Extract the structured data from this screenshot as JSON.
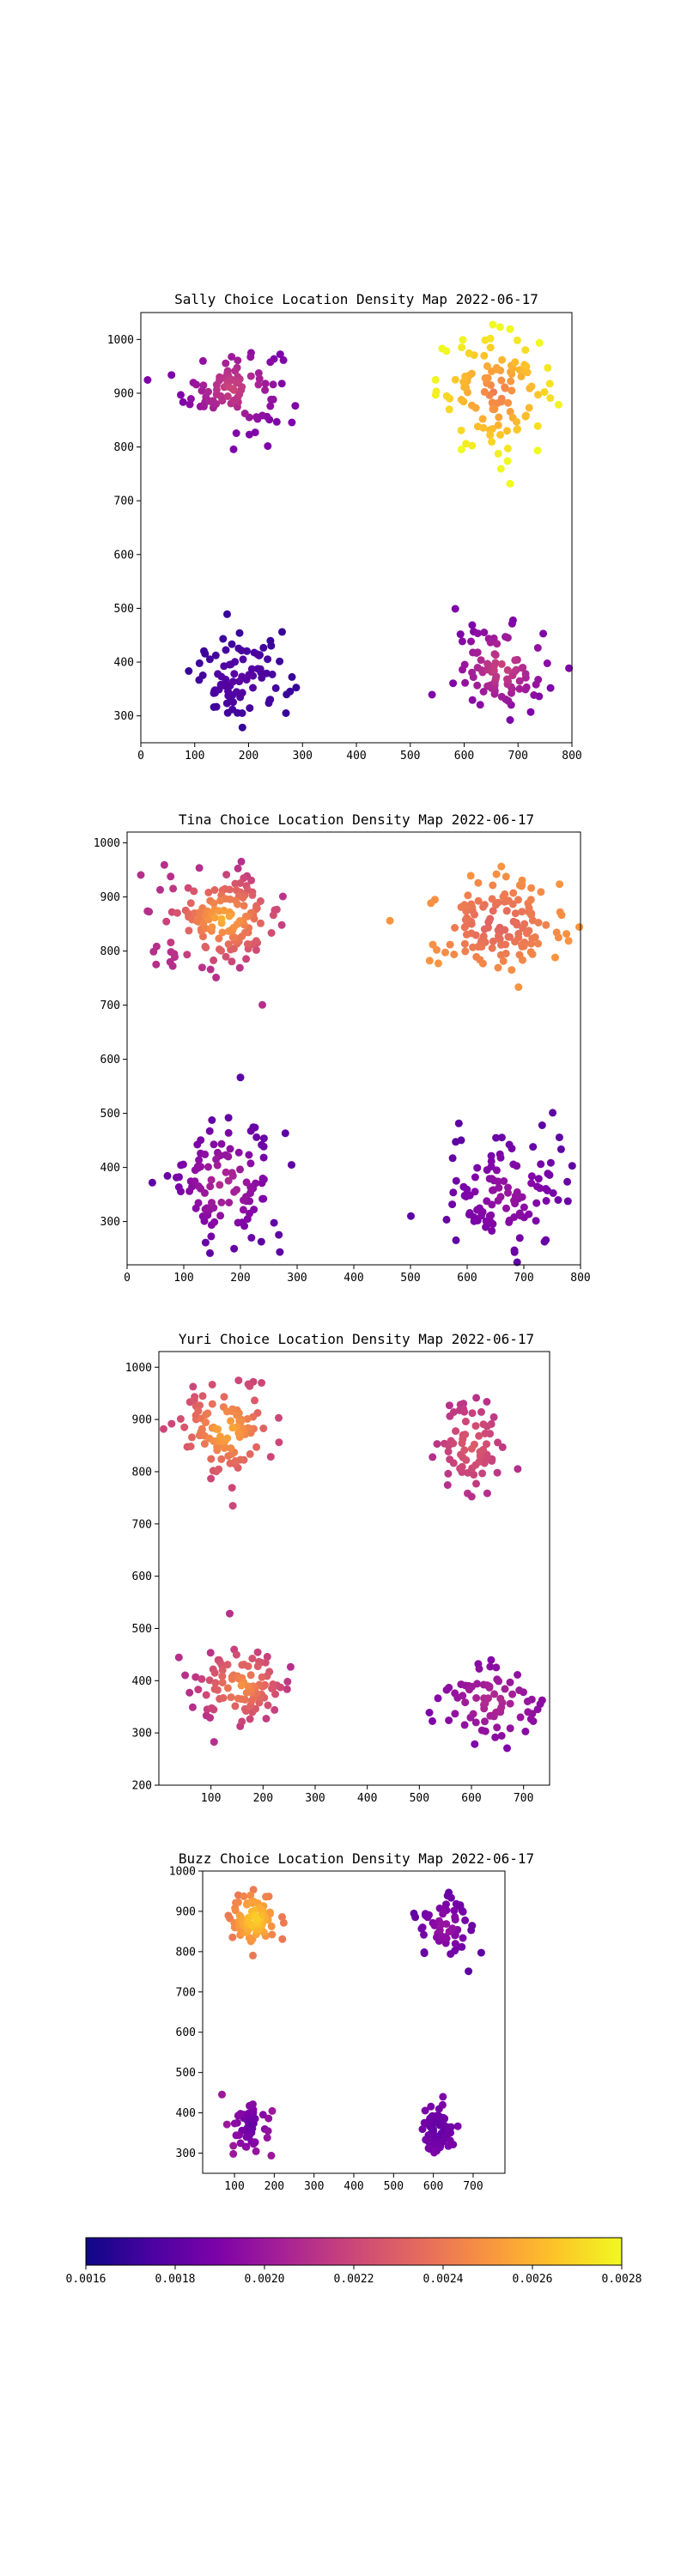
{
  "figure": {
    "colormap": "plasma",
    "colorbar": {
      "ticks": [
        "0.0016",
        "0.0018",
        "0.0020",
        "0.0022",
        "0.0024",
        "0.0026",
        "0.0028"
      ],
      "min": 0.0016,
      "max": 0.0028
    }
  },
  "chart_data": [
    {
      "type": "scatter",
      "title": "Sally Choice Location Density Map 2022-06-17",
      "xlim": [
        0,
        800
      ],
      "ylim": [
        250,
        1050
      ],
      "xticks": [
        "0",
        "100",
        "200",
        "300",
        "400",
        "500",
        "600",
        "700",
        "800"
      ],
      "yticks": [
        "300",
        "400",
        "500",
        "600",
        "700",
        "800",
        "900",
        "1000"
      ],
      "grid": false,
      "clusters": [
        {
          "cx": 170,
          "cy": 910,
          "sx": 45,
          "sy": 40,
          "n": 95,
          "zcenter": 0.0022,
          "zedge": 0.0019
        },
        {
          "cx": 660,
          "cy": 900,
          "sx": 55,
          "sy": 55,
          "n": 110,
          "zcenter": 0.0024,
          "zedge": 0.0028
        },
        {
          "cx": 185,
          "cy": 370,
          "sx": 45,
          "sy": 40,
          "n": 85,
          "zcenter": 0.0018,
          "zedge": 0.0017
        },
        {
          "cx": 670,
          "cy": 390,
          "sx": 45,
          "sy": 40,
          "n": 90,
          "zcenter": 0.0022,
          "zedge": 0.0019
        }
      ]
    },
    {
      "type": "scatter",
      "title": "Tina Choice Location Density Map 2022-06-17",
      "xlim": [
        0,
        800
      ],
      "ylim": [
        220,
        1020
      ],
      "xticks": [
        "0",
        "100",
        "200",
        "300",
        "400",
        "500",
        "600",
        "700",
        "800"
      ],
      "yticks": [
        "300",
        "400",
        "500",
        "600",
        "700",
        "800",
        "900",
        "1000"
      ],
      "grid": false,
      "clusters": [
        {
          "cx": 170,
          "cy": 860,
          "sx": 55,
          "sy": 45,
          "n": 150,
          "zcenter": 0.0026,
          "zedge": 0.0021
        },
        {
          "cx": 650,
          "cy": 850,
          "sx": 60,
          "sy": 45,
          "n": 140,
          "zcenter": 0.0023,
          "zedge": 0.0025
        },
        {
          "cx": 170,
          "cy": 370,
          "sx": 50,
          "sy": 60,
          "n": 110,
          "zcenter": 0.0021,
          "zedge": 0.0018
        },
        {
          "cx": 670,
          "cy": 350,
          "sx": 60,
          "sy": 60,
          "n": 110,
          "zcenter": 0.002,
          "zedge": 0.0018
        }
      ]
    },
    {
      "type": "scatter",
      "title": "Yuri Choice Location Density Map 2022-06-17",
      "xlim": [
        0,
        750
      ],
      "ylim": [
        200,
        1030
      ],
      "xticks": [
        "100",
        "200",
        "300",
        "400",
        "500",
        "600",
        "700"
      ],
      "yticks": [
        "200",
        "300",
        "400",
        "500",
        "600",
        "700",
        "800",
        "900",
        "1000"
      ],
      "grid": false,
      "clusters": [
        {
          "cx": 130,
          "cy": 880,
          "sx": 45,
          "sy": 45,
          "n": 110,
          "zcenter": 0.0026,
          "zedge": 0.0022
        },
        {
          "cx": 600,
          "cy": 850,
          "sx": 35,
          "sy": 45,
          "n": 70,
          "zcenter": 0.0023,
          "zedge": 0.0021
        },
        {
          "cx": 160,
          "cy": 390,
          "sx": 45,
          "sy": 40,
          "n": 100,
          "zcenter": 0.0025,
          "zedge": 0.0021
        },
        {
          "cx": 640,
          "cy": 360,
          "sx": 55,
          "sy": 40,
          "n": 75,
          "zcenter": 0.0021,
          "zedge": 0.0019
        }
      ]
    },
    {
      "type": "scatter",
      "title": "Buzz Choice Location Density Map 2022-06-17",
      "xlim": [
        20,
        780
      ],
      "ylim": [
        250,
        1000
      ],
      "xticks": [
        "100",
        "200",
        "300",
        "400",
        "500",
        "600",
        "700"
      ],
      "yticks": [
        "300",
        "400",
        "500",
        "600",
        "700",
        "800",
        "900",
        "1000"
      ],
      "grid": false,
      "clusters": [
        {
          "cx": 150,
          "cy": 880,
          "sx": 30,
          "sy": 35,
          "n": 80,
          "zcenter": 0.0027,
          "zedge": 0.0024
        },
        {
          "cx": 630,
          "cy": 860,
          "sx": 40,
          "sy": 45,
          "n": 60,
          "zcenter": 0.002,
          "zedge": 0.0018
        },
        {
          "cx": 140,
          "cy": 370,
          "sx": 25,
          "sy": 35,
          "n": 55,
          "zcenter": 0.0018,
          "zedge": 0.002
        },
        {
          "cx": 610,
          "cy": 360,
          "sx": 25,
          "sy": 30,
          "n": 65,
          "zcenter": 0.0018,
          "zedge": 0.0019
        }
      ]
    }
  ]
}
